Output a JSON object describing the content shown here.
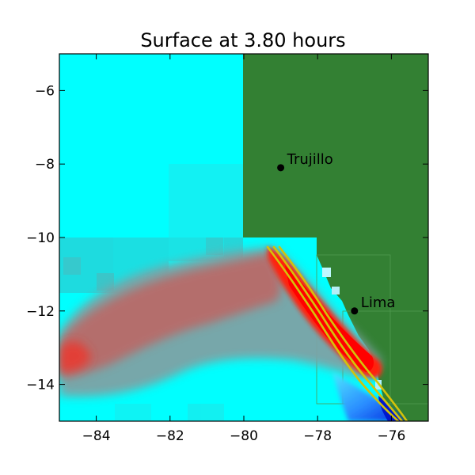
{
  "title": "Surface at 3.80 hours",
  "map": {
    "x_range": [
      -85,
      -75
    ],
    "y_range": [
      -15,
      -5
    ],
    "x_ticks": [
      -84,
      -82,
      -80,
      -78,
      -76
    ],
    "y_ticks": [
      -6,
      -8,
      -10,
      -12,
      -14
    ],
    "x_tick_labels": [
      "−84",
      "−82",
      "−80",
      "−78",
      "−76"
    ],
    "y_tick_labels": [
      "−6",
      "−8",
      "−10",
      "−12",
      "−14"
    ],
    "places": [
      {
        "name": "Trujillo",
        "lon": -79.0,
        "lat": -8.1
      },
      {
        "name": "Lima",
        "lon": -77.0,
        "lat": -12.0
      }
    ],
    "colors": {
      "ocean": "#00ffff",
      "land": "#338033",
      "wave_high": "#ff0000",
      "wave_low": "#0033ff",
      "contour": "#d4c20a",
      "marker": "#000000"
    }
  }
}
